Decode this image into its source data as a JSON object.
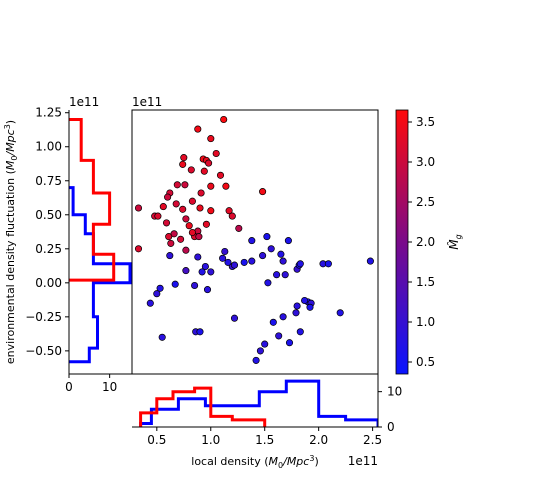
{
  "chart_data": {
    "type": "scatter",
    "scale_labels": {
      "main_x": "1e11",
      "main_y": "1e11",
      "left_hist_y": "1e11",
      "bottom_x": "1e11"
    },
    "xlabel": "local density (M₀/Mpc³)",
    "ylabel": "environmental density fluctuation (M₀/Mpc³)",
    "xlim": [
      0.27,
      2.55
    ],
    "ylim": [
      -0.67,
      1.27
    ],
    "x_ticks": [
      {
        "v": 0.5,
        "label": "0.5"
      },
      {
        "v": 1.0,
        "label": "1.0"
      },
      {
        "v": 1.5,
        "label": "1.5"
      },
      {
        "v": 2.0,
        "label": "2.0"
      },
      {
        "v": 2.5,
        "label": "2.5"
      }
    ],
    "y_ticks": [
      {
        "v": 1.25,
        "label": "1.25"
      },
      {
        "v": 1.0,
        "label": "1.00"
      },
      {
        "v": 0.75,
        "label": "0.75"
      },
      {
        "v": 0.5,
        "label": "0.50"
      },
      {
        "v": 0.25,
        "label": "0.25"
      },
      {
        "v": 0.0,
        "label": "0.00"
      },
      {
        "v": -0.25,
        "label": "−0.25"
      },
      {
        "v": -0.5,
        "label": "−0.50"
      }
    ],
    "colorbar": {
      "label": "M̂g",
      "range": [
        0.35,
        3.65
      ],
      "ticks": [
        {
          "v": 0.5,
          "label": "0.5"
        },
        {
          "v": 1.0,
          "label": "1.0"
        },
        {
          "v": 1.5,
          "label": "1.5"
        },
        {
          "v": 2.0,
          "label": "2.0"
        },
        {
          "v": 2.5,
          "label": "2.5"
        },
        {
          "v": 3.0,
          "label": "3.0"
        },
        {
          "v": 3.5,
          "label": "3.5"
        }
      ],
      "colors": {
        "low": "#0a14ff",
        "mid": "#7a0a8a",
        "high": "#ff0a0a"
      }
    },
    "points": [
      {
        "x": 1.12,
        "y": 1.2,
        "c": 3.6
      },
      {
        "x": 0.88,
        "y": 1.13,
        "c": 3.5
      },
      {
        "x": 1.0,
        "y": 1.06,
        "c": 3.4
      },
      {
        "x": 1.05,
        "y": 0.95,
        "c": 3.3
      },
      {
        "x": 0.93,
        "y": 0.91,
        "c": 3.5
      },
      {
        "x": 0.96,
        "y": 0.9,
        "c": 3.4
      },
      {
        "x": 0.98,
        "y": 0.88,
        "c": 3.2
      },
      {
        "x": 0.75,
        "y": 0.92,
        "c": 3.3
      },
      {
        "x": 0.74,
        "y": 0.87,
        "c": 3.4
      },
      {
        "x": 0.94,
        "y": 0.82,
        "c": 3.3
      },
      {
        "x": 0.82,
        "y": 0.83,
        "c": 3.2
      },
      {
        "x": 0.69,
        "y": 0.72,
        "c": 3.1
      },
      {
        "x": 1.09,
        "y": 0.79,
        "c": 3.3
      },
      {
        "x": 0.76,
        "y": 0.72,
        "c": 3.0
      },
      {
        "x": 1.0,
        "y": 0.71,
        "c": 3.4
      },
      {
        "x": 0.91,
        "y": 0.66,
        "c": 3.2
      },
      {
        "x": 1.14,
        "y": 0.71,
        "c": 3.5
      },
      {
        "x": 0.62,
        "y": 0.66,
        "c": 3.1
      },
      {
        "x": 0.6,
        "y": 0.63,
        "c": 3.0
      },
      {
        "x": 0.83,
        "y": 0.6,
        "c": 3.2
      },
      {
        "x": 1.48,
        "y": 0.67,
        "c": 3.5
      },
      {
        "x": 0.56,
        "y": 0.56,
        "c": 3.3
      },
      {
        "x": 0.68,
        "y": 0.58,
        "c": 3.1
      },
      {
        "x": 0.33,
        "y": 0.55,
        "c": 3.0
      },
      {
        "x": 0.74,
        "y": 0.54,
        "c": 3.2
      },
      {
        "x": 0.9,
        "y": 0.55,
        "c": 3.4
      },
      {
        "x": 1.0,
        "y": 0.53,
        "c": 3.5
      },
      {
        "x": 1.17,
        "y": 0.53,
        "c": 3.3
      },
      {
        "x": 0.48,
        "y": 0.49,
        "c": 3.1
      },
      {
        "x": 0.51,
        "y": 0.49,
        "c": 3.2
      },
      {
        "x": 0.77,
        "y": 0.47,
        "c": 3.0
      },
      {
        "x": 0.8,
        "y": 0.42,
        "c": 3.4
      },
      {
        "x": 0.59,
        "y": 0.44,
        "c": 3.1
      },
      {
        "x": 1.2,
        "y": 0.49,
        "c": 3.2
      },
      {
        "x": 0.96,
        "y": 0.43,
        "c": 3.3
      },
      {
        "x": 0.88,
        "y": 0.38,
        "c": 3.0
      },
      {
        "x": 0.66,
        "y": 0.36,
        "c": 2.9
      },
      {
        "x": 0.61,
        "y": 0.34,
        "c": 3.2
      },
      {
        "x": 0.72,
        "y": 0.32,
        "c": 3.1
      },
      {
        "x": 0.85,
        "y": 0.34,
        "c": 3.2
      },
      {
        "x": 0.89,
        "y": 0.34,
        "c": 2.9
      },
      {
        "x": 0.83,
        "y": 0.37,
        "c": 3.3
      },
      {
        "x": 0.63,
        "y": 0.29,
        "c": 3.0
      },
      {
        "x": 0.77,
        "y": 0.24,
        "c": 2.8
      },
      {
        "x": 0.33,
        "y": 0.25,
        "c": 3.2
      },
      {
        "x": 1.26,
        "y": 0.4,
        "c": 2.8
      },
      {
        "x": 0.77,
        "y": 0.09,
        "c": 1.2
      },
      {
        "x": 0.62,
        "y": 0.2,
        "c": 0.9
      },
      {
        "x": 0.88,
        "y": 0.19,
        "c": 0.9
      },
      {
        "x": 0.95,
        "y": 0.12,
        "c": 0.8
      },
      {
        "x": 0.92,
        "y": 0.08,
        "c": 0.7
      },
      {
        "x": 1.0,
        "y": 0.08,
        "c": 0.9
      },
      {
        "x": 1.2,
        "y": 0.12,
        "c": 1.0
      },
      {
        "x": 1.16,
        "y": 0.15,
        "c": 0.7
      },
      {
        "x": 1.22,
        "y": 0.13,
        "c": 0.9
      },
      {
        "x": 1.11,
        "y": 0.18,
        "c": 0.8
      },
      {
        "x": 1.13,
        "y": 0.23,
        "c": 1.0
      },
      {
        "x": 1.31,
        "y": 0.15,
        "c": 0.6
      },
      {
        "x": 1.38,
        "y": 0.31,
        "c": 0.7
      },
      {
        "x": 1.38,
        "y": 0.16,
        "c": 0.8
      },
      {
        "x": 1.48,
        "y": 0.2,
        "c": 0.9
      },
      {
        "x": 1.52,
        "y": 0.34,
        "c": 0.6
      },
      {
        "x": 1.56,
        "y": 0.25,
        "c": 0.9
      },
      {
        "x": 1.65,
        "y": 0.21,
        "c": 0.7
      },
      {
        "x": 1.67,
        "y": 0.16,
        "c": 0.9
      },
      {
        "x": 1.72,
        "y": 0.31,
        "c": 0.6
      },
      {
        "x": 1.8,
        "y": 0.1,
        "c": 1.0
      },
      {
        "x": 1.82,
        "y": 0.13,
        "c": 0.6
      },
      {
        "x": 1.83,
        "y": 0.14,
        "c": 0.7
      },
      {
        "x": 1.69,
        "y": 0.06,
        "c": 0.9
      },
      {
        "x": 1.61,
        "y": 0.06,
        "c": 0.8
      },
      {
        "x": 1.53,
        "y": 0.0,
        "c": 0.7
      },
      {
        "x": 2.04,
        "y": 0.14,
        "c": 0.8
      },
      {
        "x": 2.09,
        "y": 0.14,
        "c": 0.6
      },
      {
        "x": 2.48,
        "y": 0.16,
        "c": 0.7
      },
      {
        "x": 0.85,
        "y": -0.02,
        "c": 0.9
      },
      {
        "x": 0.97,
        "y": -0.05,
        "c": 0.8
      },
      {
        "x": 0.67,
        "y": -0.01,
        "c": 0.6
      },
      {
        "x": 0.53,
        "y": -0.04,
        "c": 0.7
      },
      {
        "x": 0.5,
        "y": -0.08,
        "c": 0.9
      },
      {
        "x": 0.44,
        "y": -0.15,
        "c": 0.8
      },
      {
        "x": 1.9,
        "y": -0.14,
        "c": 0.6
      },
      {
        "x": 1.93,
        "y": -0.15,
        "c": 0.9
      },
      {
        "x": 1.87,
        "y": -0.13,
        "c": 0.7
      },
      {
        "x": 1.8,
        "y": -0.17,
        "c": 0.8
      },
      {
        "x": 1.92,
        "y": -0.18,
        "c": 0.6
      },
      {
        "x": 1.79,
        "y": -0.22,
        "c": 0.9
      },
      {
        "x": 2.2,
        "y": -0.22,
        "c": 0.7
      },
      {
        "x": 1.67,
        "y": -0.25,
        "c": 0.8
      },
      {
        "x": 1.58,
        "y": -0.29,
        "c": 0.6
      },
      {
        "x": 1.22,
        "y": -0.26,
        "c": 0.9
      },
      {
        "x": 1.83,
        "y": -0.36,
        "c": 0.7
      },
      {
        "x": 1.63,
        "y": -0.39,
        "c": 0.9
      },
      {
        "x": 1.73,
        "y": -0.44,
        "c": 0.6
      },
      {
        "x": 1.5,
        "y": -0.45,
        "c": 0.8
      },
      {
        "x": 1.42,
        "y": -0.57,
        "c": 0.7
      },
      {
        "x": 0.86,
        "y": -0.36,
        "c": 0.9
      },
      {
        "x": 0.9,
        "y": -0.36,
        "c": 0.6
      },
      {
        "x": 0.55,
        "y": -0.4,
        "c": 0.8
      },
      {
        "x": 1.46,
        "y": -0.5,
        "c": 0.9
      }
    ],
    "hist_left": {
      "xlim": [
        0,
        15.5
      ],
      "x_ticks": [
        {
          "v": 0,
          "label": "0"
        },
        {
          "v": 10,
          "label": "10"
        }
      ],
      "red": {
        "edges": [
          0.02,
          0.21,
          0.43,
          0.66,
          0.9,
          1.2
        ],
        "counts": [
          11,
          6,
          10,
          6,
          3
        ]
      },
      "blue": {
        "edges": [
          -0.58,
          -0.48,
          -0.25,
          0.0,
          0.14,
          0.36,
          0.5,
          0.7
        ],
        "counts": [
          5,
          7,
          6,
          15,
          6,
          4,
          1
        ]
      }
    },
    "hist_bottom": {
      "ylim": [
        0,
        15
      ],
      "y_ticks": [
        {
          "v": 0,
          "label": "0"
        },
        {
          "v": 10,
          "label": "10"
        }
      ],
      "red": {
        "edges": [
          0.35,
          0.5,
          0.65,
          0.85,
          1.0,
          1.2,
          1.5
        ],
        "counts": [
          4,
          8,
          10,
          11,
          3,
          2
        ]
      },
      "blue": {
        "edges": [
          0.35,
          0.45,
          0.7,
          0.95,
          1.2,
          1.45,
          1.7,
          2.0,
          2.25,
          2.55
        ],
        "counts": [
          1,
          5,
          8,
          6,
          6,
          10,
          13,
          3,
          2
        ]
      }
    }
  }
}
